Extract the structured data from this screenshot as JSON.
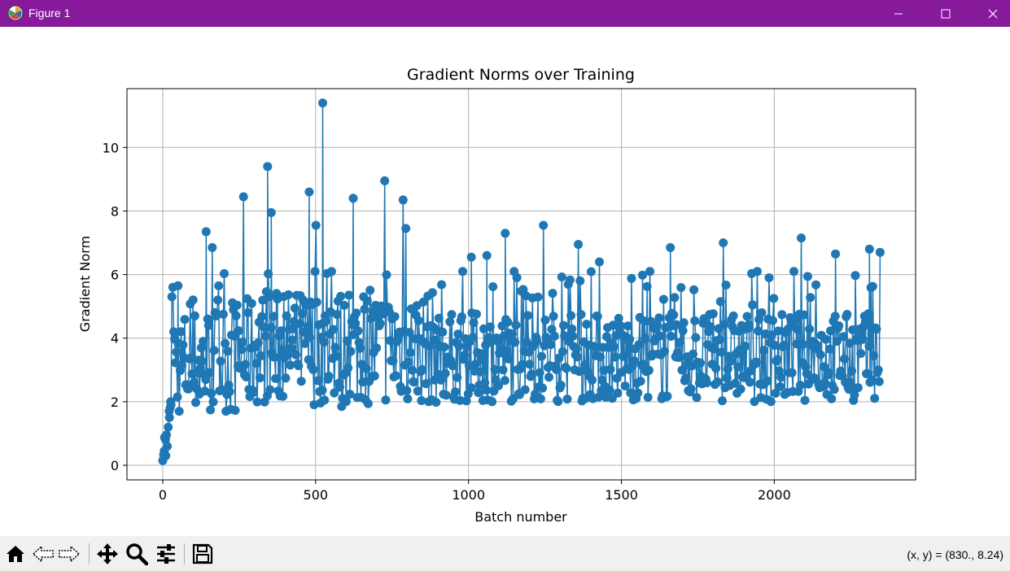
{
  "window": {
    "title": "Figure 1",
    "icon": "matplotlib-icon",
    "controls": [
      "minimize-icon",
      "maximize-icon",
      "close-icon"
    ],
    "titlebar_color": "#861a9b"
  },
  "toolbar": {
    "buttons": [
      "home-icon",
      "back-icon",
      "forward-icon",
      "pan-icon",
      "zoom-icon",
      "configure-subplots-icon",
      "save-icon"
    ],
    "coords_text": "(x, y) = (830., 8.24)"
  },
  "chart_data": {
    "type": "line",
    "title": "Gradient Norms over Training",
    "xlabel": "Batch number",
    "ylabel": "Gradient Norm",
    "xlim": [
      -117,
      2462
    ],
    "ylim": [
      -0.46,
      11.85
    ],
    "xticks": [
      0,
      500,
      1000,
      1500,
      2000
    ],
    "xtick_labels": [
      "0",
      "500",
      "1000",
      "1500",
      "2000"
    ],
    "yticks": [
      0,
      2,
      4,
      6,
      8,
      10
    ],
    "ytick_labels": [
      "0",
      "2",
      "4",
      "6",
      "8",
      "10"
    ],
    "grid": true,
    "marker": "circle",
    "color": "#1f77b4",
    "x_count": 2346,
    "key_points": [
      {
        "x": 0,
        "y": 0.15
      },
      {
        "x": 5,
        "y": 0.45
      },
      {
        "x": 10,
        "y": 0.3
      },
      {
        "x": 15,
        "y": 0.6
      },
      {
        "x": 18,
        "y": 1.2
      },
      {
        "x": 22,
        "y": 1.5
      },
      {
        "x": 26,
        "y": 2.0
      },
      {
        "x": 30,
        "y": 5.3
      },
      {
        "x": 33,
        "y": 5.6
      },
      {
        "x": 36,
        "y": 4.2
      },
      {
        "x": 50,
        "y": 5.65
      },
      {
        "x": 142,
        "y": 7.35
      },
      {
        "x": 162,
        "y": 6.85
      },
      {
        "x": 264,
        "y": 8.45
      },
      {
        "x": 343,
        "y": 9.4
      },
      {
        "x": 355,
        "y": 7.95
      },
      {
        "x": 479,
        "y": 8.6
      },
      {
        "x": 501,
        "y": 7.55
      },
      {
        "x": 523,
        "y": 11.4
      },
      {
        "x": 529,
        "y": 2.05
      },
      {
        "x": 585,
        "y": 1.85
      },
      {
        "x": 623,
        "y": 8.4
      },
      {
        "x": 726,
        "y": 8.95
      },
      {
        "x": 786,
        "y": 8.35
      },
      {
        "x": 795,
        "y": 7.45
      },
      {
        "x": 1009,
        "y": 6.55
      },
      {
        "x": 1060,
        "y": 6.6
      },
      {
        "x": 1120,
        "y": 7.3
      },
      {
        "x": 1245,
        "y": 7.55
      },
      {
        "x": 1359,
        "y": 6.95
      },
      {
        "x": 1428,
        "y": 6.4
      },
      {
        "x": 1660,
        "y": 6.85
      },
      {
        "x": 1833,
        "y": 7.0
      },
      {
        "x": 2088,
        "y": 7.15
      },
      {
        "x": 2200,
        "y": 6.65
      },
      {
        "x": 2311,
        "y": 6.8
      },
      {
        "x": 2346,
        "y": 6.7
      }
    ],
    "noise_range": [
      1.9,
      5.5
    ]
  }
}
